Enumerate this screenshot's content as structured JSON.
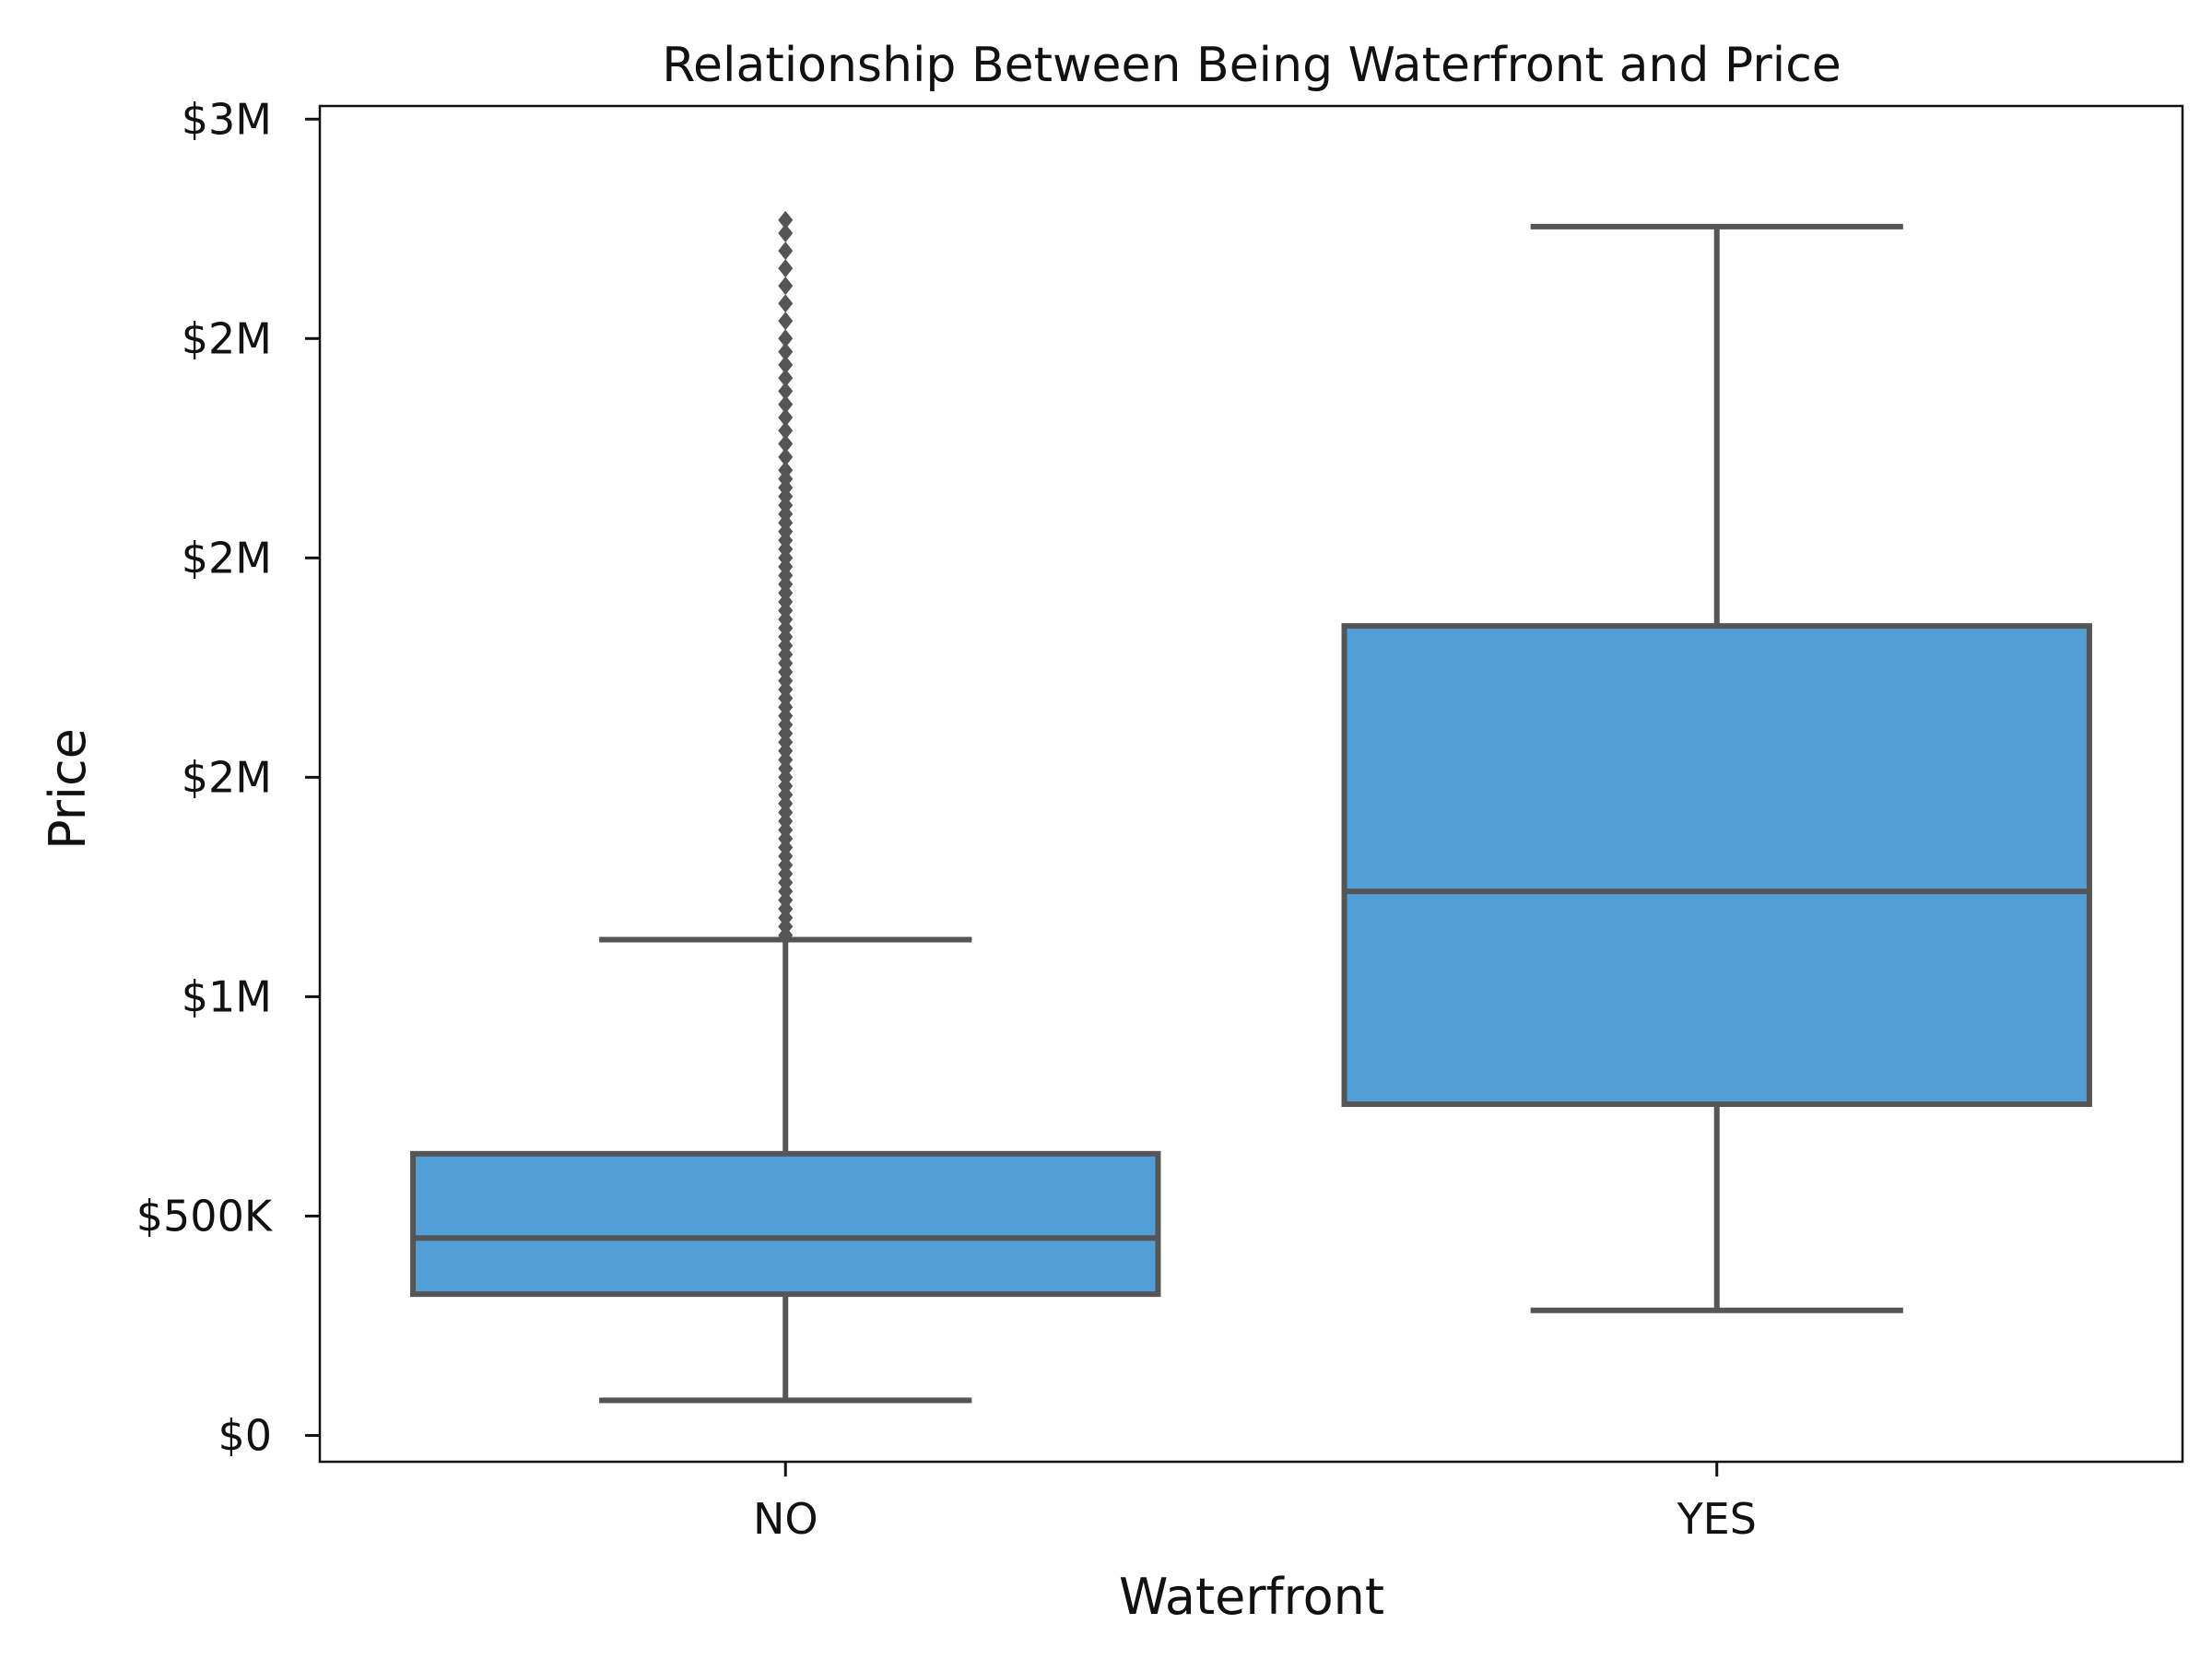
{
  "chart_data": {
    "type": "box",
    "title": "Relationship Between Being Waterfront and Price",
    "xlabel": "Waterfront",
    "ylabel": "Price",
    "categories": [
      "NO",
      "YES"
    ],
    "ylim": [
      -60000,
      3030000
    ],
    "y_ticks": [
      {
        "value": 0,
        "label": "$0"
      },
      {
        "value": 500000,
        "label": "$500K"
      },
      {
        "value": 1000000,
        "label": "$1M"
      },
      {
        "value": 1500000,
        "label": "$2M"
      },
      {
        "value": 2000000,
        "label": "$2M"
      },
      {
        "value": 2500000,
        "label": "$2M"
      },
      {
        "value": 3000000,
        "label": "$3M"
      }
    ],
    "boxes": [
      {
        "category": "NO",
        "whisker_low": 80000,
        "q1": 322000,
        "median": 450000,
        "q3": 642000,
        "whisker_high": 1130000,
        "outliers": [
          1140000,
          1160000,
          1180000,
          1200000,
          1220000,
          1240000,
          1260000,
          1280000,
          1300000,
          1320000,
          1340000,
          1360000,
          1380000,
          1400000,
          1420000,
          1440000,
          1460000,
          1480000,
          1500000,
          1520000,
          1540000,
          1560000,
          1580000,
          1600000,
          1620000,
          1640000,
          1660000,
          1680000,
          1700000,
          1720000,
          1740000,
          1760000,
          1780000,
          1800000,
          1820000,
          1840000,
          1860000,
          1880000,
          1900000,
          1920000,
          1940000,
          1960000,
          1980000,
          2000000,
          2020000,
          2040000,
          2060000,
          2080000,
          2100000,
          2120000,
          2140000,
          2160000,
          2180000,
          2200000,
          2230000,
          2260000,
          2290000,
          2320000,
          2350000,
          2380000,
          2410000,
          2440000,
          2470000,
          2500000,
          2540000,
          2580000,
          2620000,
          2660000,
          2700000,
          2740000,
          2770000
        ]
      },
      {
        "category": "YES",
        "whisker_low": 285000,
        "q1": 755000,
        "median": 1240000,
        "q3": 1845000,
        "whisker_high": 2755000,
        "outliers": []
      }
    ],
    "colors": {
      "box_fill": "#519fd6",
      "box_edge": "#555555",
      "axis": "#111111"
    },
    "grid": false,
    "legend": "none"
  }
}
